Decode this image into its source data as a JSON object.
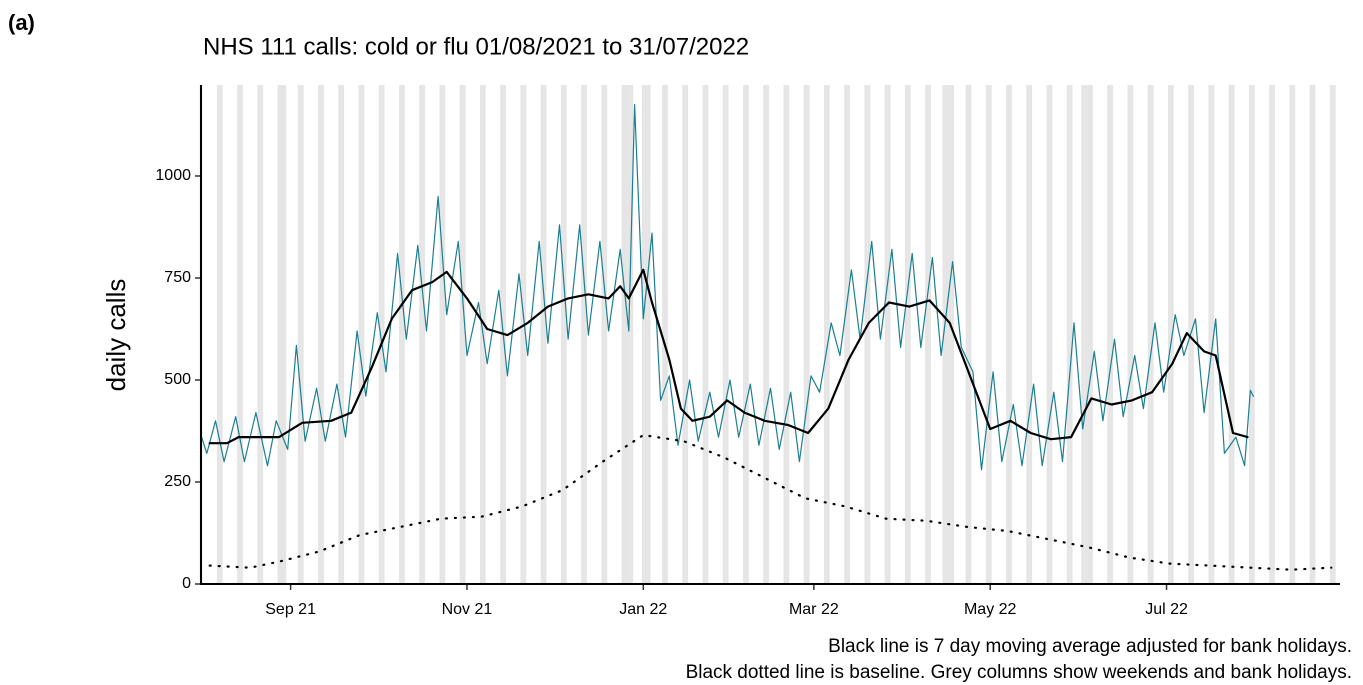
{
  "label": "(a)",
  "chart_data": {
    "type": "line",
    "title": "NHS 111 calls: cold or flu 01/08/2021 to 31/07/2022",
    "y_label": "daily calls",
    "notes": [
      "Black line is 7 day moving average adjusted for bank holidays.",
      "Black dotted line is baseline. Grey columns show weekends and bank holidays."
    ],
    "xlim": [
      "2021-08-01",
      "2022-08-30"
    ],
    "xticks": [
      {
        "value": "2021-09-01",
        "label": "Sep 21"
      },
      {
        "value": "2021-11-01",
        "label": "Nov 21"
      },
      {
        "value": "2022-01-01",
        "label": "Jan 22"
      },
      {
        "value": "2022-03-01",
        "label": "Mar 22"
      },
      {
        "value": "2022-05-01",
        "label": "May 22"
      },
      {
        "value": "2022-07-01",
        "label": "Jul 22"
      }
    ],
    "ylim": [
      0,
      1223
    ],
    "yticks": [
      0,
      250,
      500,
      750,
      1000
    ],
    "bank_holidays": [
      "2021-08-30",
      "2021-12-27",
      "2021-12-28",
      "2022-01-03",
      "2022-04-15",
      "2022-04-18",
      "2022-06-02",
      "2022-06-03"
    ],
    "column_color": "#e5e5e5",
    "series": [
      {
        "color": "#1b7f91",
        "style": "solid",
        "width": 1.2,
        "x": [
          "2021-08-01",
          "2021-08-03",
          "2021-08-06",
          "2021-08-09",
          "2021-08-13",
          "2021-08-16",
          "2021-08-20",
          "2021-08-24",
          "2021-08-27",
          "2021-08-31",
          "2021-09-03",
          "2021-09-06",
          "2021-09-10",
          "2021-09-13",
          "2021-09-17",
          "2021-09-20",
          "2021-09-24",
          "2021-09-27",
          "2021-10-01",
          "2021-10-04",
          "2021-10-08",
          "2021-10-11",
          "2021-10-15",
          "2021-10-18",
          "2021-10-22",
          "2021-10-25",
          "2021-10-29",
          "2021-11-01",
          "2021-11-05",
          "2021-11-08",
          "2021-11-12",
          "2021-11-15",
          "2021-11-19",
          "2021-11-22",
          "2021-11-26",
          "2021-11-29",
          "2021-12-03",
          "2021-12-06",
          "2021-12-10",
          "2021-12-13",
          "2021-12-17",
          "2021-12-20",
          "2021-12-24",
          "2021-12-27",
          "2021-12-29",
          "2022-01-01",
          "2022-01-04",
          "2022-01-07",
          "2022-01-10",
          "2022-01-13",
          "2022-01-17",
          "2022-01-20",
          "2022-01-24",
          "2022-01-27",
          "2022-01-31",
          "2022-02-03",
          "2022-02-07",
          "2022-02-10",
          "2022-02-14",
          "2022-02-17",
          "2022-02-21",
          "2022-02-24",
          "2022-02-28",
          "2022-03-03",
          "2022-03-07",
          "2022-03-10",
          "2022-03-14",
          "2022-03-17",
          "2022-03-21",
          "2022-03-24",
          "2022-03-28",
          "2022-03-31",
          "2022-04-04",
          "2022-04-07",
          "2022-04-11",
          "2022-04-14",
          "2022-04-18",
          "2022-04-21",
          "2022-04-25",
          "2022-04-28",
          "2022-05-02",
          "2022-05-05",
          "2022-05-09",
          "2022-05-12",
          "2022-05-16",
          "2022-05-19",
          "2022-05-23",
          "2022-05-26",
          "2022-05-30",
          "2022-06-02",
          "2022-06-06",
          "2022-06-09",
          "2022-06-13",
          "2022-06-16",
          "2022-06-20",
          "2022-06-23",
          "2022-06-27",
          "2022-06-30",
          "2022-07-04",
          "2022-07-07",
          "2022-07-11",
          "2022-07-14",
          "2022-07-18",
          "2022-07-21",
          "2022-07-25",
          "2022-07-28",
          "2022-07-30",
          "2022-07-31"
        ],
        "values": [
          365,
          320,
          400,
          300,
          410,
          300,
          420,
          290,
          400,
          330,
          585,
          350,
          480,
          350,
          490,
          360,
          620,
          460,
          665,
          520,
          810,
          600,
          830,
          620,
          950,
          660,
          840,
          560,
          690,
          540,
          720,
          510,
          760,
          560,
          840,
          590,
          880,
          600,
          880,
          610,
          840,
          620,
          820,
          620,
          1175,
          650,
          860,
          450,
          510,
          340,
          500,
          350,
          470,
          360,
          500,
          360,
          490,
          340,
          480,
          330,
          470,
          300,
          510,
          470,
          640,
          560,
          770,
          600,
          840,
          600,
          820,
          580,
          810,
          580,
          800,
          560,
          790,
          580,
          520,
          280,
          520,
          300,
          440,
          290,
          490,
          290,
          470,
          300,
          640,
          380,
          570,
          400,
          600,
          410,
          560,
          430,
          640,
          470,
          660,
          560,
          650,
          420,
          650,
          320,
          360,
          290,
          475,
          460
        ]
      },
      {
        "color": "#000000",
        "style": "solid",
        "width": 2.2,
        "x": [
          "2021-08-04",
          "2021-08-10",
          "2021-08-14",
          "2021-08-28",
          "2021-09-05",
          "2021-09-15",
          "2021-09-22",
          "2021-09-29",
          "2021-10-06",
          "2021-10-13",
          "2021-10-20",
          "2021-10-25",
          "2021-11-01",
          "2021-11-08",
          "2021-11-15",
          "2021-11-22",
          "2021-11-29",
          "2021-12-06",
          "2021-12-13",
          "2021-12-20",
          "2021-12-24",
          "2021-12-27",
          "2022-01-01",
          "2022-01-04",
          "2022-01-10",
          "2022-01-14",
          "2022-01-18",
          "2022-01-24",
          "2022-01-30",
          "2022-02-05",
          "2022-02-12",
          "2022-02-20",
          "2022-02-27",
          "2022-03-06",
          "2022-03-13",
          "2022-03-20",
          "2022-03-27",
          "2022-04-03",
          "2022-04-10",
          "2022-04-17",
          "2022-04-24",
          "2022-05-01",
          "2022-05-08",
          "2022-05-15",
          "2022-05-22",
          "2022-05-29",
          "2022-06-05",
          "2022-06-12",
          "2022-06-19",
          "2022-06-26",
          "2022-07-03",
          "2022-07-08",
          "2022-07-14",
          "2022-07-18",
          "2022-07-24",
          "2022-07-29"
        ],
        "values": [
          345,
          345,
          360,
          360,
          395,
          400,
          420,
          530,
          650,
          720,
          740,
          765,
          700,
          625,
          610,
          640,
          680,
          700,
          710,
          700,
          730,
          700,
          770,
          690,
          550,
          430,
          400,
          410,
          450,
          420,
          400,
          390,
          370,
          430,
          550,
          640,
          690,
          680,
          695,
          640,
          510,
          380,
          400,
          370,
          355,
          360,
          455,
          440,
          450,
          470,
          540,
          615,
          570,
          560,
          370,
          360
        ]
      },
      {
        "color": "#000000",
        "style": "dotted",
        "width": 2.2,
        "x": [
          "2021-08-04",
          "2021-08-18",
          "2021-08-28",
          "2021-09-11",
          "2021-09-25",
          "2021-10-09",
          "2021-10-23",
          "2021-11-06",
          "2021-11-20",
          "2021-12-04",
          "2021-12-18",
          "2022-01-01",
          "2022-01-15",
          "2022-01-29",
          "2022-02-12",
          "2022-02-26",
          "2022-03-12",
          "2022-03-26",
          "2022-04-09",
          "2022-04-23",
          "2022-05-07",
          "2022-05-21",
          "2022-06-04",
          "2022-06-18",
          "2022-07-02",
          "2022-07-16",
          "2022-07-30",
          "2022-08-13",
          "2022-08-27"
        ],
        "values": [
          45,
          40,
          55,
          80,
          120,
          140,
          160,
          165,
          190,
          230,
          300,
          365,
          350,
          310,
          260,
          210,
          190,
          160,
          155,
          140,
          130,
          110,
          90,
          65,
          50,
          45,
          40,
          35,
          40
        ]
      }
    ]
  }
}
